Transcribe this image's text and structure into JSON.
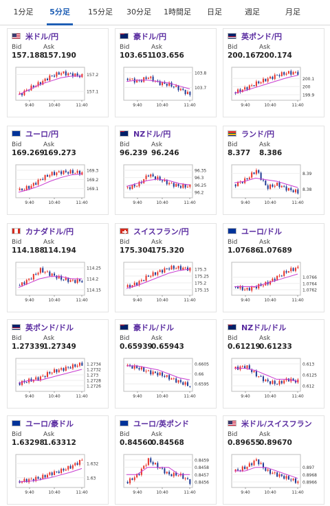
{
  "tabs": [
    {
      "label": "1分足",
      "active": false
    },
    {
      "label": "5分足",
      "active": true
    },
    {
      "label": "15分足",
      "active": false
    },
    {
      "label": "30分足",
      "active": false
    },
    {
      "label": "1時間足",
      "active": false
    },
    {
      "label": "日足",
      "active": false
    },
    {
      "label": "週足",
      "active": false
    },
    {
      "label": "月足",
      "active": false
    }
  ],
  "labels": {
    "bid": "Bid",
    "ask": "Ask"
  },
  "colors": {
    "up": "#e8332a",
    "down": "#1f3a93",
    "ma": "#c83ad0",
    "tab_active": "#1f5fb5",
    "pair_name": "#5a2ca0"
  },
  "cards": [
    {
      "pair": "米ドル/円",
      "flag": "us-flag",
      "bid": "157.188",
      "ask": "157.190",
      "chart_data": {
        "type": "candlestick",
        "x_ticks": [
          "9:40",
          "10:40",
          "11:40"
        ],
        "y_ticks": [
          "157.2",
          "157.1"
        ],
        "trend": [
          157.08,
          157.12,
          157.15,
          157.19,
          157.21,
          157.2,
          157.19
        ],
        "ma": [
          157.08,
          157.11,
          157.14,
          157.16,
          157.18,
          157.19,
          157.19
        ]
      }
    },
    {
      "pair": "豪ドル/円",
      "flag": "au-flag",
      "bid": "103.651",
      "ask": "103.656",
      "chart_data": {
        "type": "candlestick",
        "x_ticks": [
          "9:40",
          "10:40",
          "11:40"
        ],
        "y_ticks": [
          "103.8",
          "103.7"
        ],
        "trend": [
          103.76,
          103.74,
          103.77,
          103.73,
          103.72,
          103.69,
          103.65
        ],
        "ma": [
          103.74,
          103.75,
          103.75,
          103.74,
          103.73,
          103.71,
          103.69
        ]
      }
    },
    {
      "pair": "英ポンド/円",
      "flag": "uk-flag",
      "bid": "200.167",
      "ask": "200.174",
      "chart_data": {
        "type": "candlestick",
        "x_ticks": [
          "9:40",
          "10:40",
          "11:40"
        ],
        "y_ticks": [
          "200.1",
          "200",
          "199.9"
        ],
        "trend": [
          199.93,
          199.98,
          200.04,
          200.09,
          200.14,
          200.17,
          200.17
        ],
        "ma": [
          199.92,
          199.95,
          199.99,
          200.03,
          200.07,
          200.11,
          200.14
        ]
      }
    },
    {
      "pair": "ユーロ/円",
      "flag": "eu-flag",
      "bid": "169.269",
      "ask": "169.273",
      "chart_data": {
        "type": "candlestick",
        "x_ticks": [
          "9:40",
          "10:40",
          "11:40"
        ],
        "y_ticks": [
          "169.3",
          "169.2",
          "169.1"
        ],
        "trend": [
          169.08,
          169.12,
          169.2,
          169.26,
          169.28,
          169.28,
          169.27
        ],
        "ma": [
          169.06,
          169.09,
          169.13,
          169.18,
          169.22,
          169.25,
          169.26
        ]
      }
    },
    {
      "pair": "NZドル/円",
      "flag": "nz-flag",
      "bid": "96.239",
      "ask": "96.246",
      "chart_data": {
        "type": "candlestick",
        "x_ticks": [
          "9:40",
          "10:40",
          "11:40"
        ],
        "y_ticks": [
          "96.35",
          "96.3",
          "96.25",
          "96.2"
        ],
        "trend": [
          96.23,
          96.25,
          96.32,
          96.29,
          96.26,
          96.24,
          96.24
        ],
        "ma": [
          96.24,
          96.26,
          96.28,
          96.29,
          96.28,
          96.26,
          96.25
        ]
      }
    },
    {
      "pair": "ランド/円",
      "flag": "za-flag",
      "bid": "8.377",
      "ask": "8.386",
      "chart_data": {
        "type": "candlestick",
        "x_ticks": [
          "9:40",
          "10:40",
          "11:40"
        ],
        "y_ticks": [
          "8.39",
          "8.38"
        ],
        "trend": [
          8.383,
          8.386,
          8.392,
          8.381,
          8.383,
          8.38,
          8.378
        ],
        "ma": [
          8.384,
          8.385,
          8.387,
          8.386,
          8.385,
          8.383,
          8.381
        ]
      }
    },
    {
      "pair": "カナダドル/円",
      "flag": "ca-flag",
      "bid": "114.188",
      "ask": "114.194",
      "chart_data": {
        "type": "candlestick",
        "x_ticks": [
          "9:40",
          "10:40",
          "11:40"
        ],
        "y_ticks": [
          "114.25",
          "114.2",
          "114.15"
        ],
        "trend": [
          114.17,
          114.2,
          114.24,
          114.22,
          114.2,
          114.19,
          114.19
        ],
        "ma": [
          114.16,
          114.18,
          114.2,
          114.21,
          114.21,
          114.2,
          114.2
        ]
      }
    },
    {
      "pair": "スイスフラン/円",
      "flag": "ch-flag",
      "bid": "175.304",
      "ask": "175.320",
      "chart_data": {
        "type": "candlestick",
        "x_ticks": [
          "9:40",
          "10:40",
          "11:40"
        ],
        "y_ticks": [
          "175.3",
          "175.25",
          "175.2",
          "175.15"
        ],
        "trend": [
          175.17,
          175.2,
          175.25,
          175.28,
          175.31,
          175.31,
          175.3
        ],
        "ma": [
          175.16,
          175.18,
          175.21,
          175.24,
          175.27,
          175.29,
          175.3
        ]
      }
    },
    {
      "pair": "ユーロ/ドル",
      "flag": "eu-flag",
      "bid": "1.07686",
      "ask": "1.07689",
      "chart_data": {
        "type": "candlestick",
        "x_ticks": [
          "9:40",
          "10:40",
          "11:40"
        ],
        "y_ticks": [
          "1.0766",
          "1.0764",
          "1.0762"
        ],
        "trend": [
          1.0763,
          1.0762,
          1.0763,
          1.0764,
          1.0766,
          1.0768,
          1.0769
        ],
        "ma": [
          1.0763,
          1.0763,
          1.0763,
          1.0764,
          1.0765,
          1.0766,
          1.0767
        ]
      }
    },
    {
      "pair": "英ポンド/ドル",
      "flag": "uk-flag",
      "bid": "1.27339",
      "ask": "1.27349",
      "chart_data": {
        "type": "candlestick",
        "x_ticks": [
          "9:40",
          "10:40",
          "11:40"
        ],
        "y_ticks": [
          "1.2734",
          "1.2732",
          "1.273",
          "1.2728",
          "1.2726"
        ],
        "trend": [
          1.2727,
          1.2728,
          1.2729,
          1.2731,
          1.2732,
          1.2733,
          1.2734
        ],
        "ma": [
          1.2727,
          1.2728,
          1.2728,
          1.2729,
          1.273,
          1.2731,
          1.2732
        ]
      }
    },
    {
      "pair": "豪ドル/ドル",
      "flag": "au-flag",
      "bid": "0.65939",
      "ask": "0.65943",
      "chart_data": {
        "type": "candlestick",
        "x_ticks": [
          "9:40",
          "10:40",
          "11:40"
        ],
        "y_ticks": [
          "0.6605",
          "0.66",
          "0.6595"
        ],
        "trend": [
          0.6604,
          0.6603,
          0.6601,
          0.66,
          0.6598,
          0.6596,
          0.6594
        ],
        "ma": [
          0.6604,
          0.6604,
          0.6603,
          0.6602,
          0.66,
          0.6598,
          0.6597
        ]
      }
    },
    {
      "pair": "NZドル/ドル",
      "flag": "nz-flag",
      "bid": "0.61219",
      "ask": "0.61233",
      "chart_data": {
        "type": "candlestick",
        "x_ticks": [
          "9:40",
          "10:40",
          "11:40"
        ],
        "y_ticks": [
          "0.613",
          "0.6125",
          "0.612"
        ],
        "trend": [
          0.6128,
          0.6129,
          0.6125,
          0.6122,
          0.6121,
          0.6123,
          0.6122
        ],
        "ma": [
          0.6128,
          0.6128,
          0.6127,
          0.6125,
          0.6123,
          0.6123,
          0.6122
        ]
      }
    },
    {
      "pair": "ユーロ/豪ドル",
      "flag": "eu-flag",
      "bid": "1.63298",
      "ask": "1.63312",
      "chart_data": {
        "type": "candlestick",
        "x_ticks": [
          "9:40",
          "10:40",
          "11:40"
        ],
        "y_ticks": [
          "1.632",
          "1.63"
        ],
        "trend": [
          1.6295,
          1.6297,
          1.63,
          1.6306,
          1.631,
          1.6316,
          1.6325
        ],
        "ma": [
          1.6294,
          1.6295,
          1.6297,
          1.63,
          1.6304,
          1.6308,
          1.6313
        ]
      }
    },
    {
      "pair": "ユーロ/英ポンド",
      "flag": "eu-flag",
      "bid": "0.84560",
      "ask": "0.84568",
      "chart_data": {
        "type": "candlestick",
        "x_ticks": [
          "9:40",
          "10:40",
          "11:40"
        ],
        "y_ticks": [
          "0.8459",
          "0.8458",
          "0.8457",
          "0.8456"
        ],
        "trend": [
          0.8456,
          0.8457,
          0.8459,
          0.8458,
          0.8457,
          0.8457,
          0.8456
        ],
        "ma": [
          0.8457,
          0.8457,
          0.8458,
          0.8458,
          0.8458,
          0.8457,
          0.8457
        ]
      }
    },
    {
      "pair": "米ドル/スイスフラン",
      "flag": "us-flag",
      "bid": "0.89655",
      "ask": "0.89670",
      "chart_data": {
        "type": "candlestick",
        "x_ticks": [
          "9:40",
          "10:40",
          "11:40"
        ],
        "y_ticks": [
          "0.897",
          "0.8968",
          "0.8966"
        ],
        "trend": [
          0.8969,
          0.897,
          0.8972,
          0.8969,
          0.8968,
          0.8967,
          0.8966
        ],
        "ma": [
          0.8969,
          0.8969,
          0.897,
          0.897,
          0.8969,
          0.8968,
          0.8967
        ]
      }
    }
  ]
}
